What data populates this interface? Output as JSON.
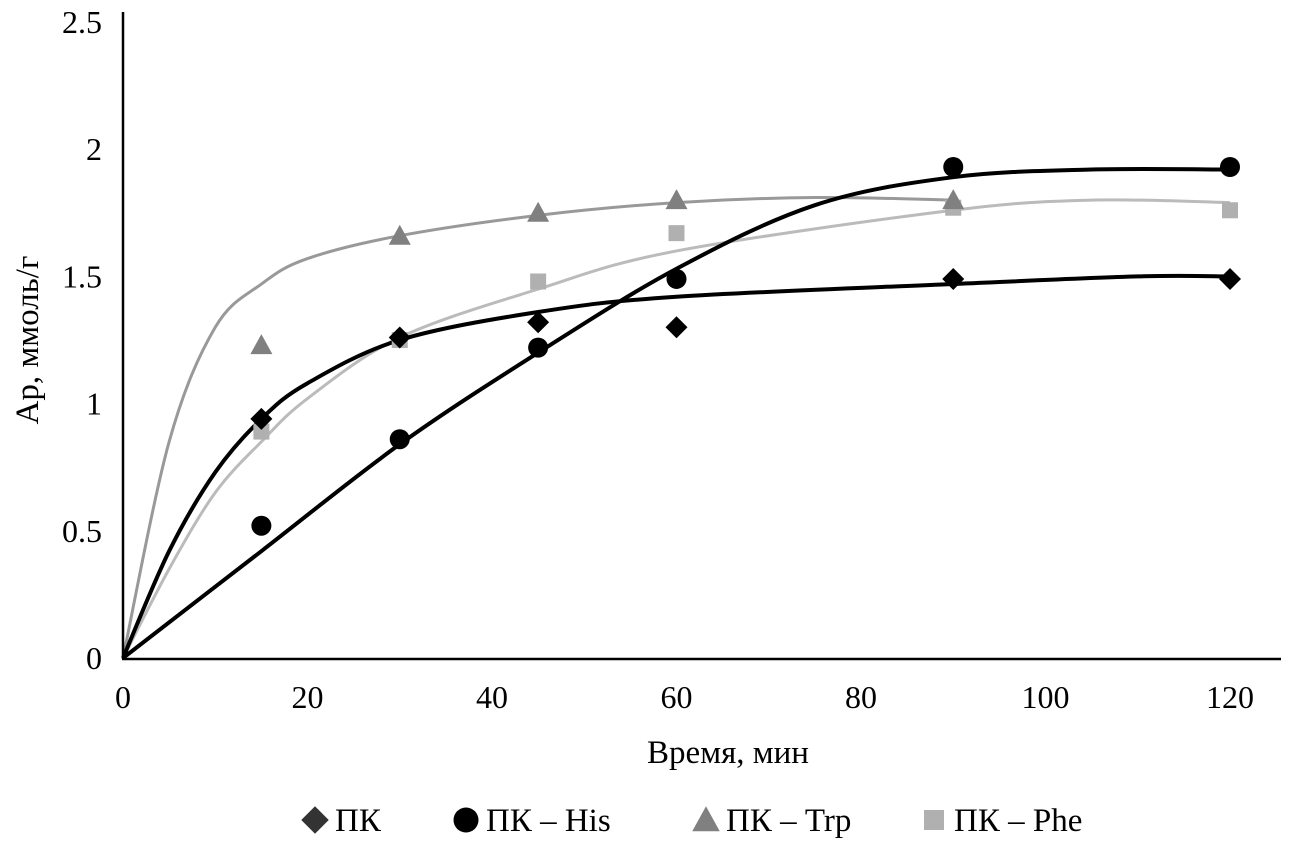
{
  "chart_data": {
    "type": "scatter",
    "title": "",
    "xlabel": "Время, мин",
    "ylabel": "Ap, ммоль/г",
    "xlim": [
      0,
      120
    ],
    "ylim": [
      0,
      2.5
    ],
    "xticks": [
      0,
      20,
      40,
      60,
      80,
      100,
      120
    ],
    "yticks": [
      0,
      0.5,
      1,
      1.5,
      2,
      2.5
    ],
    "xtick_labels": [
      "0",
      "20",
      "40",
      "60",
      "80",
      "100",
      "120"
    ],
    "ytick_labels": [
      "0",
      "0.5",
      "1",
      "1.5",
      "2",
      "2.5"
    ],
    "grid": false,
    "legend_position": "bottom",
    "series": [
      {
        "name": "ПК",
        "marker": "diamond",
        "color": "#000000",
        "legend_color": "#333333",
        "line_color": "#000000",
        "x": [
          15,
          30,
          45,
          60,
          90,
          120
        ],
        "y": [
          0.94,
          1.26,
          1.32,
          1.3,
          1.49,
          1.49
        ],
        "trend": [
          [
            0,
            0
          ],
          [
            5,
            0.42
          ],
          [
            10,
            0.73
          ],
          [
            15,
            0.94
          ],
          [
            20,
            1.08
          ],
          [
            30,
            1.25
          ],
          [
            45,
            1.36
          ],
          [
            60,
            1.42
          ],
          [
            90,
            1.47
          ],
          [
            110,
            1.5
          ],
          [
            120,
            1.5
          ]
        ]
      },
      {
        "name": "ПК – His",
        "marker": "circle",
        "color": "#000000",
        "legend_color": "#000000",
        "line_color": "#000000",
        "x": [
          15,
          30,
          45,
          60,
          90,
          120
        ],
        "y": [
          0.52,
          0.86,
          1.22,
          1.49,
          1.93,
          1.93
        ],
        "trend": [
          [
            0,
            0
          ],
          [
            15,
            0.42
          ],
          [
            30,
            0.84
          ],
          [
            45,
            1.2
          ],
          [
            60,
            1.53
          ],
          [
            75,
            1.78
          ],
          [
            90,
            1.89
          ],
          [
            105,
            1.92
          ],
          [
            120,
            1.92
          ]
        ]
      },
      {
        "name": "ПК – Trp",
        "marker": "triangle",
        "color": "#808080",
        "legend_color": "#808080",
        "line_color": "#999999",
        "x": [
          15,
          30,
          45,
          60,
          90
        ],
        "y": [
          1.23,
          1.66,
          1.75,
          1.8,
          1.8
        ],
        "trend": [
          [
            0,
            0
          ],
          [
            5,
            0.85
          ],
          [
            10,
            1.3
          ],
          [
            15,
            1.47
          ],
          [
            20,
            1.57
          ],
          [
            30,
            1.66
          ],
          [
            45,
            1.74
          ],
          [
            60,
            1.79
          ],
          [
            75,
            1.81
          ],
          [
            90,
            1.8
          ]
        ]
      },
      {
        "name": "ПК – Phe",
        "marker": "square",
        "color": "#b0b0b0",
        "legend_color": "#b0b0b0",
        "line_color": "#bbbbbb",
        "x": [
          15,
          30,
          45,
          60,
          90,
          120
        ],
        "y": [
          0.89,
          1.25,
          1.48,
          1.67,
          1.77,
          1.76
        ],
        "trend": [
          [
            0,
            0
          ],
          [
            5,
            0.35
          ],
          [
            10,
            0.65
          ],
          [
            15,
            0.85
          ],
          [
            20,
            1.02
          ],
          [
            30,
            1.26
          ],
          [
            45,
            1.45
          ],
          [
            60,
            1.6
          ],
          [
            90,
            1.76
          ],
          [
            105,
            1.8
          ],
          [
            120,
            1.79
          ]
        ]
      }
    ]
  }
}
